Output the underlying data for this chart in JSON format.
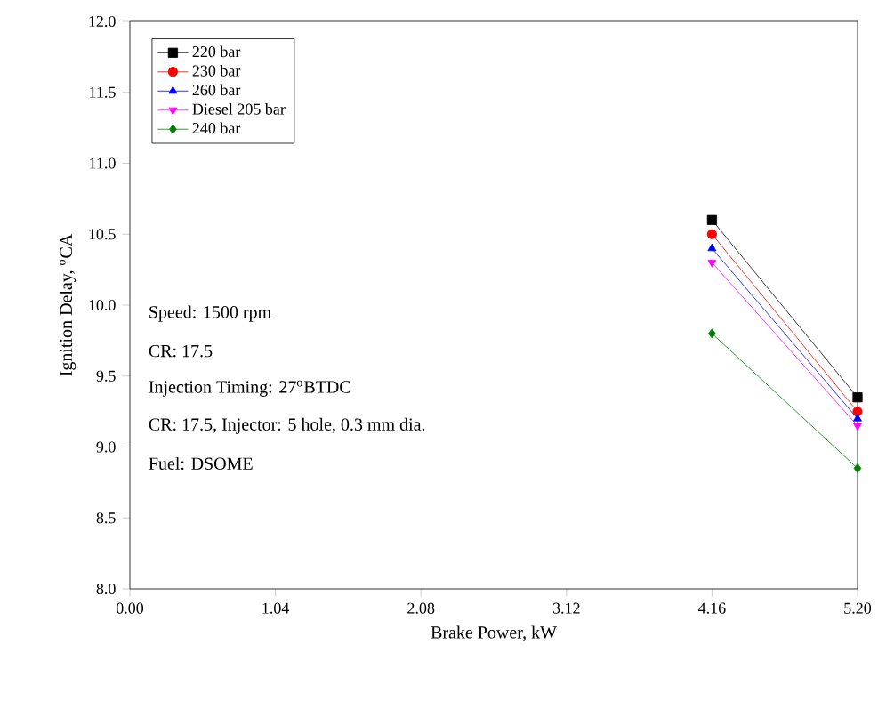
{
  "chart_data": {
    "type": "line",
    "xlabel": "Brake Power, kW",
    "ylabel": "Ignition Delay, $^{o}$CA",
    "x": [
      4.16,
      5.2
    ],
    "series": [
      {
        "name": "220 bar",
        "color": "#000000",
        "marker": "square",
        "values": [
          10.6,
          9.35
        ]
      },
      {
        "name": "230 bar",
        "color": "#ff0000",
        "marker": "circle",
        "values": [
          10.5,
          9.25
        ]
      },
      {
        "name": "260 bar",
        "color": "#0000ff",
        "marker": "triangle",
        "values": [
          10.4,
          9.2
        ]
      },
      {
        "name": "Diesel 205 bar",
        "color": "#ff00ff",
        "marker": "triangle-down",
        "values": [
          10.3,
          9.15
        ]
      },
      {
        "name": "240 bar",
        "color": "#008000",
        "marker": "diamond",
        "values": [
          9.8,
          8.85
        ]
      }
    ],
    "xlim": [
      0,
      5.2
    ],
    "xticks": [
      {
        "value": 0,
        "label": "0.00"
      },
      1.04,
      2.08,
      3.12,
      4.16,
      {
        "value": 5.2,
        "label": "5.20"
      }
    ],
    "ylim": [
      8,
      12
    ],
    "yticks": [
      {
        "value": 8,
        "label": "8.0"
      },
      8.5,
      {
        "value": 9,
        "label": "9.0"
      },
      9.5,
      {
        "value": 10,
        "label": "10.0"
      },
      10.5,
      {
        "value": 11,
        "label": "11.0"
      },
      11.5,
      {
        "value": 12,
        "label": "12.0"
      }
    ],
    "legend": "top left",
    "grid": false,
    "annotations": [
      "Speed: 1500 rpm",
      "CR: 17.5",
      "Injection Timing: 27$^{o}$BTDC",
      "CR: 17.5, Injector: 5 hole, 0.3 mm dia.",
      "Fuel: DSOME"
    ]
  }
}
